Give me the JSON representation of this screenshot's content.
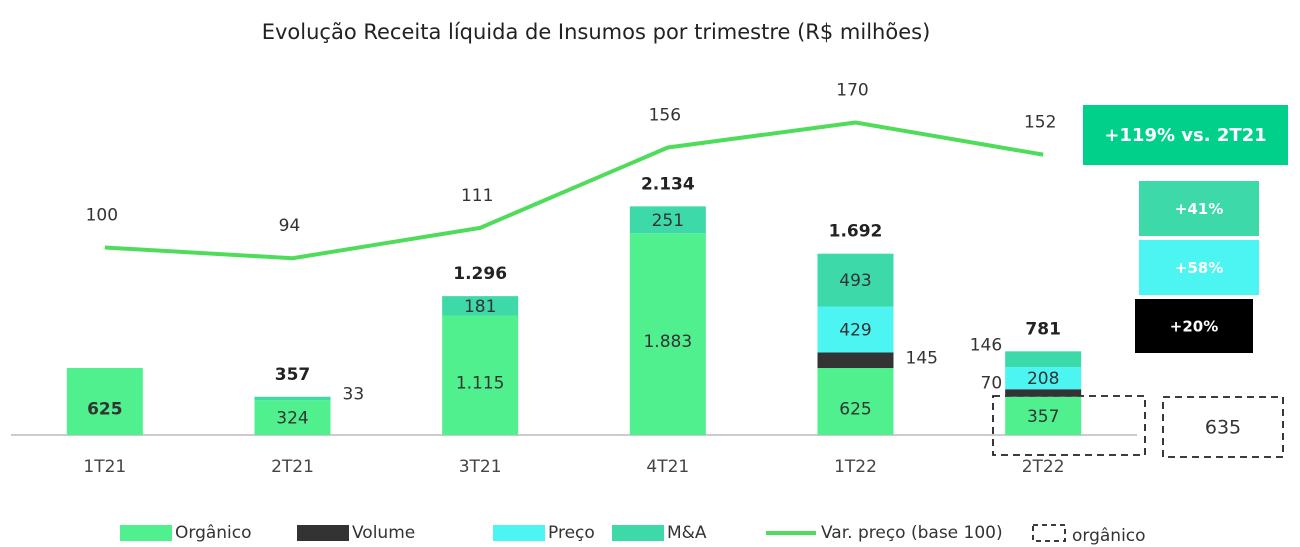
{
  "chart_data": {
    "type": "stacked_bar_line",
    "title": "Evolução Receita líquida de Insumos por trimestre (R$ milhões)",
    "categories": [
      "1T21",
      "2T21",
      "3T21",
      "4T21",
      "1T22",
      "2T22"
    ],
    "ylim": [
      0,
      3500
    ],
    "y2lim": [
      -5,
      205
    ],
    "grid": false,
    "series": [
      {
        "name": "Orgânico",
        "color": "#4ff08d",
        "values": [
          625,
          324,
          1115,
          1883,
          625,
          357
        ],
        "value_labels": [
          "625",
          "324",
          "1.115",
          "1.883",
          "625",
          "357"
        ]
      },
      {
        "name": "Volume",
        "color": "#333333",
        "values": [
          null,
          null,
          null,
          null,
          145,
          70
        ],
        "value_labels": [
          null,
          null,
          null,
          null,
          "145",
          "70"
        ]
      },
      {
        "name": "Preço",
        "color": "#4df5f2",
        "values": [
          null,
          null,
          null,
          null,
          429,
          208
        ],
        "value_labels": [
          null,
          null,
          null,
          null,
          "429",
          "208"
        ]
      },
      {
        "name": "M&A",
        "color": "#3dd9a8",
        "values": [
          null,
          33,
          181,
          251,
          493,
          146
        ],
        "value_labels": [
          null,
          "33",
          "181",
          "251",
          "493",
          "146"
        ]
      },
      {
        "name": "Var. preço (base 100)",
        "color": "#4fdc5a",
        "axis": "y2",
        "type": "line",
        "values": [
          100,
          94,
          111,
          156,
          170,
          152
        ]
      }
    ],
    "totals": {
      "values": [
        null,
        357,
        1296,
        2134,
        1692,
        781
      ],
      "value_labels": [
        null,
        "357",
        "1.296",
        "2.134",
        "1.692",
        "781"
      ]
    },
    "dashed_legend": "orgânico",
    "annotations": [
      {
        "text": "+119% vs. 2T21",
        "color": "#00d08a"
      },
      {
        "text": "+41%",
        "color": "#3dd9a8"
      },
      {
        "text": "+58%",
        "color": "#4df5f2"
      },
      {
        "text": "+20%",
        "color": "#000000"
      },
      {
        "text": "635"
      }
    ]
  }
}
